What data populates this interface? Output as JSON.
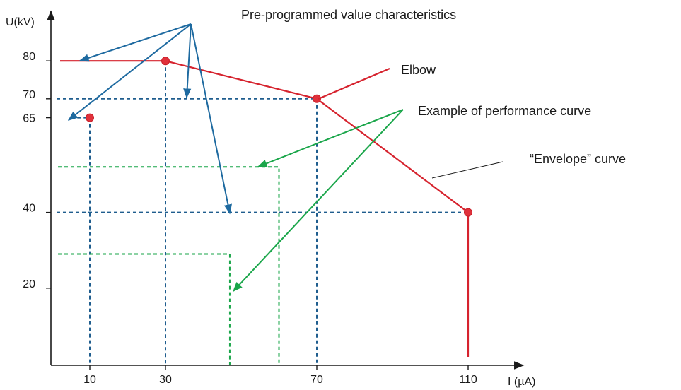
{
  "chart_data": {
    "type": "line",
    "title": "Pre-programmed value characteristics",
    "xlabel": "I (µA)",
    "ylabel": "U(kV)",
    "x_ticks": [
      10,
      30,
      70,
      110
    ],
    "y_ticks": [
      20,
      40,
      65,
      70,
      80
    ],
    "grid": false,
    "series": [
      {
        "name": "“Envelope” curve",
        "color": "#d6232e",
        "x": [
          0,
          30,
          70,
          110,
          110
        ],
        "y": [
          80,
          80,
          70,
          40,
          0
        ]
      },
      {
        "name": "Pre-programmed value characteristics",
        "style": "dashed",
        "color": "#1f5d8e",
        "points": [
          {
            "x": 10,
            "y": 65
          },
          {
            "x": 30,
            "y": 80
          },
          {
            "x": 70,
            "y": 70
          },
          {
            "x": 110,
            "y": 40
          }
        ]
      },
      {
        "name": "Example of performance curve",
        "style": "dashed",
        "color": "#1aa64a",
        "points": [
          {
            "x": 60,
            "y": 52
          },
          {
            "x": 47,
            "y": 29
          }
        ]
      }
    ],
    "markers": [
      {
        "x": 10,
        "y": 65
      },
      {
        "x": 30,
        "y": 80
      },
      {
        "x": 70,
        "y": 70
      },
      {
        "x": 110,
        "y": 40
      }
    ],
    "annotations": {
      "elbow": "Elbow",
      "performance": "Example of performance curve",
      "envelope": "“Envelope” curve",
      "preprogrammed": "Pre-programmed value characteristics"
    }
  },
  "colors": {
    "envelope": "#d6232e",
    "blue": "#1f5d8e",
    "blue_arrow": "#1e6aa0",
    "green": "#1aa64a",
    "axis": "#1a1a1a"
  }
}
